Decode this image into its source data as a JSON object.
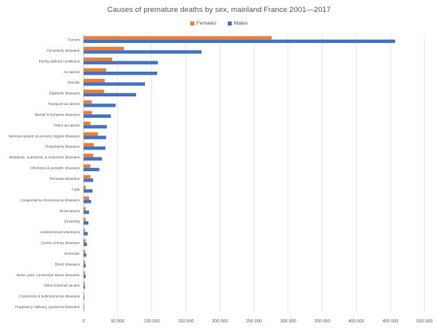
{
  "chart_data": {
    "type": "bar",
    "orientation": "horizontal",
    "title": "Causes of premature deaths  by sex, mainland France 2001—2017",
    "categories": [
      "Tumors",
      "Circulatory diseases",
      "Poorly defined conditions",
      "Accidents",
      "Suicide",
      "Digestive diseases",
      "Transport accidents",
      "Mental & behavior diseases",
      "Other accidents",
      "Nervous system & sensory organs diseases",
      "Respiratory diseases",
      "Metabolic, nutritional, & endocrine diseases",
      "Infectious & parasitic diseases",
      "Perinatal diseases",
      "Falls",
      "Congenital & chromosomal diseases",
      "Intoxications",
      "Drowning",
      "Undetermined intentions",
      "Genito urinary diseases",
      "Homicide",
      "Blood diseases",
      "Bone, joint, connective tissue diseases",
      "Other external causes",
      "Cutaneous & subcutaneous diseases",
      "Pregnancy, delivery, puerperal diseases"
    ],
    "series": [
      {
        "name": "Females",
        "color": "#ED7D31",
        "values": [
          276000,
          59000,
          42000,
          33000,
          31000,
          30000,
          12000,
          12000,
          10000,
          21000,
          15000,
          14000,
          10000,
          10000,
          3000,
          8000,
          3000,
          3000,
          2000,
          3000,
          2000,
          2000,
          2000,
          1500,
          800,
          400
        ]
      },
      {
        "name": "Males",
        "color": "#4472C4",
        "values": [
          457000,
          173000,
          109000,
          108000,
          90000,
          77000,
          47000,
          40000,
          34000,
          33000,
          32000,
          27000,
          23000,
          14000,
          13000,
          11000,
          8000,
          7000,
          6000,
          5000,
          4000,
          3000,
          3000,
          2000,
          1000,
          300
        ]
      }
    ],
    "xlim": [
      0,
      500000
    ],
    "xticks": [
      0,
      50000,
      100000,
      150000,
      200000,
      250000,
      300000,
      350000,
      400000,
      450000,
      500000
    ],
    "xtick_labels": [
      "0",
      "50 000",
      "100 000",
      "150 000",
      "200 000",
      "250 000",
      "300 000",
      "350 000",
      "400 000",
      "450 000",
      "500 000"
    ],
    "xlabel": "",
    "ylabel": "",
    "grid": true,
    "legend_position": "top"
  }
}
